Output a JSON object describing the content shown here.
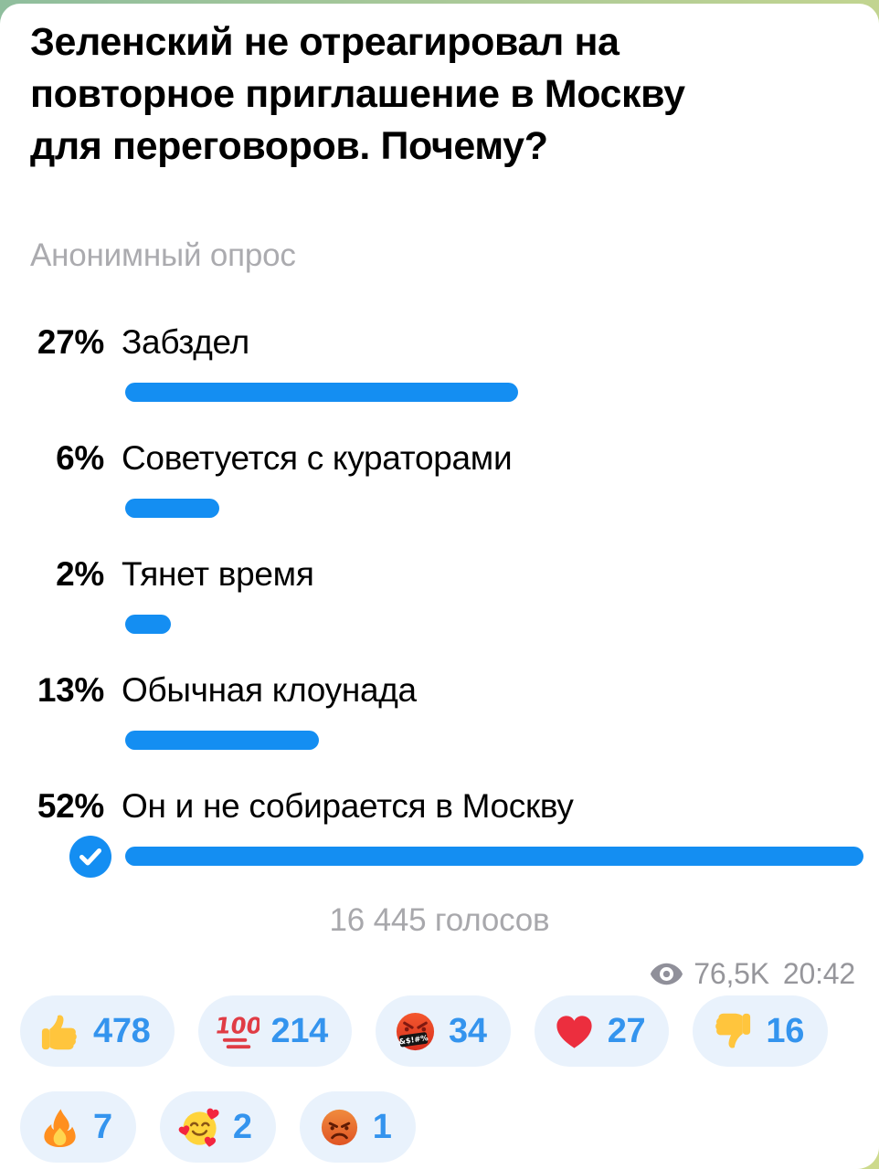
{
  "poll": {
    "question_lines": [
      "Зеленский не отреагировал на",
      "повторное приглашение в Москву",
      "для переговоров. Почему?"
    ],
    "type_label": "Анонимный опрос",
    "options": [
      {
        "percent": "27%",
        "pct": 27,
        "label": "Забздел",
        "chosen": false
      },
      {
        "percent": "6%",
        "pct": 6,
        "label": "Советуется с кураторами",
        "chosen": false
      },
      {
        "percent": "2%",
        "pct": 2,
        "label": "Тянет время",
        "chosen": false
      },
      {
        "percent": "13%",
        "pct": 13,
        "label": "Обычная клоунада",
        "chosen": false
      },
      {
        "percent": "52%",
        "pct": 52,
        "label": "Он и не собирается в Москву",
        "chosen": true
      }
    ],
    "total_votes": "16 445 голосов"
  },
  "meta": {
    "views": "76,5K",
    "time": "20:42",
    "views_icon": "eye-icon"
  },
  "reactions": [
    {
      "emoji": "thumbs-up",
      "count": "478"
    },
    {
      "emoji": "hundred-points",
      "count": "214"
    },
    {
      "emoji": "cursing-face",
      "count": "34"
    },
    {
      "emoji": "red-heart",
      "count": "27"
    },
    {
      "emoji": "thumbs-down",
      "count": "16"
    },
    {
      "emoji": "fire",
      "count": "7"
    },
    {
      "emoji": "smiling-face-with-hearts",
      "count": "2"
    },
    {
      "emoji": "angry-face",
      "count": "1"
    }
  ],
  "colors": {
    "accent_blue": "#148EF2",
    "count_blue": "#3494EE",
    "pill_bg": "#E9F2FC",
    "muted_gray": "#A8A8AC",
    "views_gray": "#96969B"
  }
}
